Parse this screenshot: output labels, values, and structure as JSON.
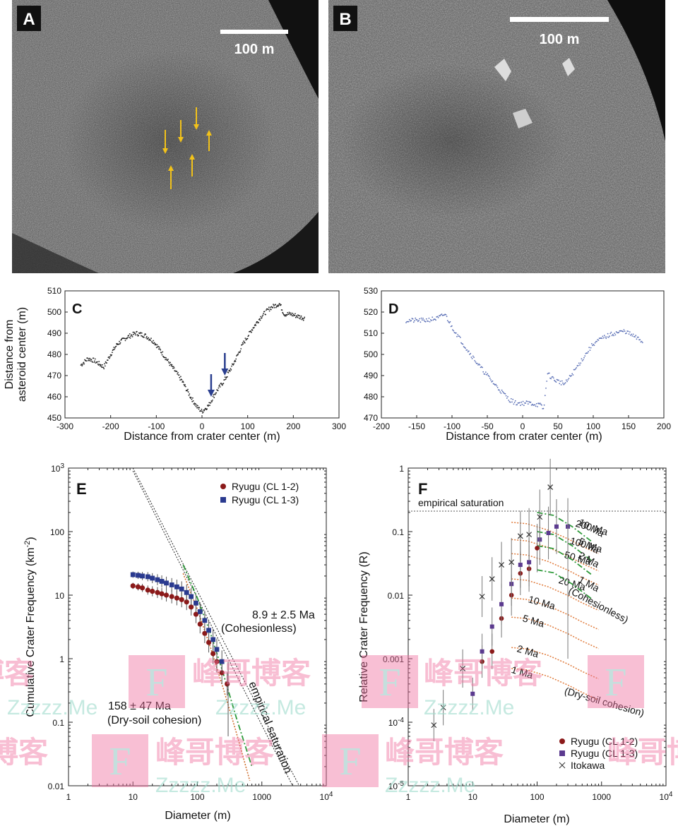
{
  "panels": {
    "A": {
      "letter": "A",
      "scale_bar": "100 m"
    },
    "B": {
      "letter": "B",
      "scale_bar": "100 m"
    },
    "C": {
      "letter": "C"
    },
    "D": {
      "letter": "D"
    },
    "E": {
      "letter": "E"
    },
    "F": {
      "letter": "F"
    }
  },
  "watermark": {
    "text_cn": "峰哥博客",
    "text_en": "Zzzzz.Me",
    "mark": "F"
  },
  "chart_data": [
    {
      "id": "C",
      "type": "scatter",
      "xlabel": "Distance from crater center (m)",
      "ylabel_line1": "Distance from",
      "ylabel_line2": "asteroid center (m)",
      "xlim": [
        -300,
        300
      ],
      "ylim": [
        450,
        510
      ],
      "xticks": [
        "-300",
        "-200",
        "-100",
        "0",
        "100",
        "200",
        "300"
      ],
      "yticks": [
        "450",
        "460",
        "470",
        "480",
        "490",
        "500",
        "510"
      ],
      "profile": [
        [
          -265,
          475
        ],
        [
          -250,
          478
        ],
        [
          -235,
          477
        ],
        [
          -215,
          474
        ],
        [
          -200,
          480
        ],
        [
          -185,
          485
        ],
        [
          -165,
          488
        ],
        [
          -145,
          490
        ],
        [
          -125,
          489
        ],
        [
          -105,
          486
        ],
        [
          -85,
          480
        ],
        [
          -65,
          474
        ],
        [
          -45,
          468
        ],
        [
          -25,
          460
        ],
        [
          -10,
          455
        ],
        [
          0,
          453
        ],
        [
          15,
          456
        ],
        [
          30,
          462
        ],
        [
          50,
          468
        ],
        [
          70,
          476
        ],
        [
          90,
          485
        ],
        [
          110,
          492
        ],
        [
          130,
          498
        ],
        [
          150,
          502
        ],
        [
          170,
          504
        ],
        [
          180,
          499
        ],
        [
          195,
          499
        ],
        [
          210,
          498
        ],
        [
          225,
          497
        ]
      ],
      "arrows_x": [
        20,
        50
      ],
      "arrow_color": "#2b3f8f",
      "point_color": "#222222"
    },
    {
      "id": "D",
      "type": "scatter",
      "xlabel": "Distance from crater center (m)",
      "xlim": [
        -200,
        200
      ],
      "ylim": [
        470,
        530
      ],
      "xticks": [
        "-200",
        "-150",
        "-100",
        "-50",
        "0",
        "50",
        "100",
        "150",
        "200"
      ],
      "yticks": [
        "470",
        "480",
        "490",
        "500",
        "510",
        "520",
        "530"
      ],
      "profile": [
        [
          -165,
          516
        ],
        [
          -140,
          516
        ],
        [
          -120,
          517
        ],
        [
          -110,
          519
        ],
        [
          -100,
          513
        ],
        [
          -80,
          503
        ],
        [
          -60,
          494
        ],
        [
          -40,
          486
        ],
        [
          -20,
          479
        ],
        [
          -10,
          477
        ],
        [
          10,
          477
        ],
        [
          25,
          476
        ],
        [
          30,
          474
        ],
        [
          35,
          491
        ],
        [
          45,
          488
        ],
        [
          60,
          486
        ],
        [
          75,
          493
        ],
        [
          85,
          498
        ],
        [
          100,
          505
        ],
        [
          115,
          508
        ],
        [
          130,
          510
        ],
        [
          145,
          511
        ],
        [
          160,
          508
        ],
        [
          170,
          506
        ]
      ],
      "point_color": "#5a6fb5"
    },
    {
      "id": "E",
      "type": "scatter",
      "xlabel": "Diameter (m)",
      "ylabel": "Cumulative Crater Frequency (km",
      "ylabel_sup": "-2",
      "ylabel_close": ")",
      "xscale": "log",
      "yscale": "log",
      "xlim": [
        1,
        10000
      ],
      "ylim": [
        0.01,
        1000
      ],
      "xticks": [
        {
          "v": 1,
          "t": "1"
        },
        {
          "v": 10,
          "t": "10"
        },
        {
          "v": 100,
          "t": "100"
        },
        {
          "v": 1000,
          "t": "1000"
        },
        {
          "v": 10000,
          "t": "10",
          "sup": "4"
        }
      ],
      "yticks": [
        {
          "v": 0.01,
          "t": "0.01"
        },
        {
          "v": 0.1,
          "t": "0.1"
        },
        {
          "v": 1,
          "t": "1"
        },
        {
          "v": 10,
          "t": "10"
        },
        {
          "v": 100,
          "t": "100"
        },
        {
          "v": 1000,
          "t": "10",
          "sup": "3"
        }
      ],
      "legend": [
        "Ryugu (CL 1-2)",
        "Ryugu (CL 1-3)"
      ],
      "series": [
        {
          "name": "Ryugu (CL 1-2)",
          "color": "#8b1a1a",
          "x": [
            10,
            12,
            14,
            17,
            20,
            24,
            28,
            33,
            40,
            48,
            57,
            68,
            80,
            95,
            110,
            130,
            150,
            175,
            200,
            240,
            290
          ],
          "y": [
            14,
            13.5,
            13,
            12,
            11.5,
            11,
            10.5,
            10,
            9.5,
            9,
            8.5,
            7.8,
            6.5,
            5,
            3.5,
            2.5,
            1.8,
            1.2,
            0.9,
            0.6,
            0.4
          ]
        },
        {
          "name": "Ryugu (CL 1-3)",
          "color": "#2a3a8f",
          "x": [
            10,
            12,
            14,
            17,
            20,
            24,
            28,
            33,
            40,
            48,
            57,
            68,
            80,
            95,
            110,
            130,
            150,
            175,
            200,
            240
          ],
          "y": [
            21,
            20.5,
            20,
            19.5,
            18.5,
            17.5,
            16.5,
            15.5,
            14.5,
            13.5,
            12.5,
            11,
            9.5,
            7.5,
            5.5,
            4,
            2.8,
            2,
            1.4,
            0.9
          ]
        }
      ],
      "annotations": [
        {
          "text": "8.9 ± 2.5 Ma",
          "color": "#2e9a3a"
        },
        {
          "text": "(Cohesionless)",
          "color": "#2e9a3a"
        },
        {
          "text": "158 ± 47 Ma",
          "color": "#d07030"
        },
        {
          "text": "(Dry-soil cohesion)",
          "color": "#d07030"
        },
        {
          "text": "empirical saturation",
          "color": "#111111"
        }
      ]
    },
    {
      "id": "F",
      "type": "scatter",
      "xlabel": "Diameter (m)",
      "ylabel": "Relative Crater Frequency (R)",
      "xscale": "log",
      "yscale": "log",
      "xlim": [
        1,
        10000
      ],
      "ylim": [
        1e-05,
        1
      ],
      "xticks": [
        {
          "v": 1,
          "t": "1"
        },
        {
          "v": 10,
          "t": "10"
        },
        {
          "v": 100,
          "t": "100"
        },
        {
          "v": 1000,
          "t": "1000"
        },
        {
          "v": 10000,
          "t": "10",
          "sup": "4"
        }
      ],
      "yticks": [
        {
          "v": 1e-05,
          "t": "10",
          "sup": "-5"
        },
        {
          "v": 0.0001,
          "t": "10",
          "sup": "-4"
        },
        {
          "v": 0.001,
          "t": "0.001"
        },
        {
          "v": 0.01,
          "t": "0.01"
        },
        {
          "v": 0.1,
          "t": "0.1"
        },
        {
          "v": 1,
          "t": "1"
        }
      ],
      "saturation_label": "empirical saturation",
      "saturation_value": 0.21,
      "legend": [
        "Ryugu (CL 1-2)",
        "Ryugu (CL 1-3)",
        "Itokawa"
      ],
      "series": [
        {
          "name": "Ryugu (CL 1-2)",
          "color": "#8b1a1a",
          "x": [
            14,
            20,
            28,
            40,
            55,
            75,
            100
          ],
          "y": [
            0.0009,
            0.0013,
            0.0043,
            0.01,
            0.022,
            0.026,
            0.055
          ]
        },
        {
          "name": "Ryugu (CL 1-3)",
          "color": "#5b3a8f",
          "x": [
            10,
            14,
            20,
            28,
            40,
            55,
            75,
            110,
            150,
            200,
            300
          ],
          "y": [
            0.00028,
            0.0013,
            0.0032,
            0.0072,
            0.015,
            0.03,
            0.033,
            0.075,
            0.095,
            0.12,
            0.12
          ]
        },
        {
          "name": "Itokawa",
          "color": "#333333",
          "x": [
            2.5,
            3.5,
            7,
            14,
            20,
            28,
            40,
            55,
            75,
            110,
            160
          ],
          "y": [
            9e-05,
            0.00017,
            0.0007,
            0.0095,
            0.018,
            0.03,
            0.033,
            0.085,
            0.09,
            0.17,
            0.5
          ]
        }
      ],
      "orange_labels": [
        "200 Ma",
        "100 Ma",
        "50 Ma",
        "20 Ma",
        "10 Ma",
        "5 Ma",
        "2 Ma",
        "1 Ma"
      ],
      "orange_tail": "(Dry-soil cohesion)",
      "green_labels": [
        "10 Ma",
        "5 Ma",
        "2 Ma",
        "1 Ma"
      ],
      "green_tail": "(Cohesionless)",
      "orange_color": "#e07a3a",
      "green_color": "#2e9a3a"
    }
  ]
}
